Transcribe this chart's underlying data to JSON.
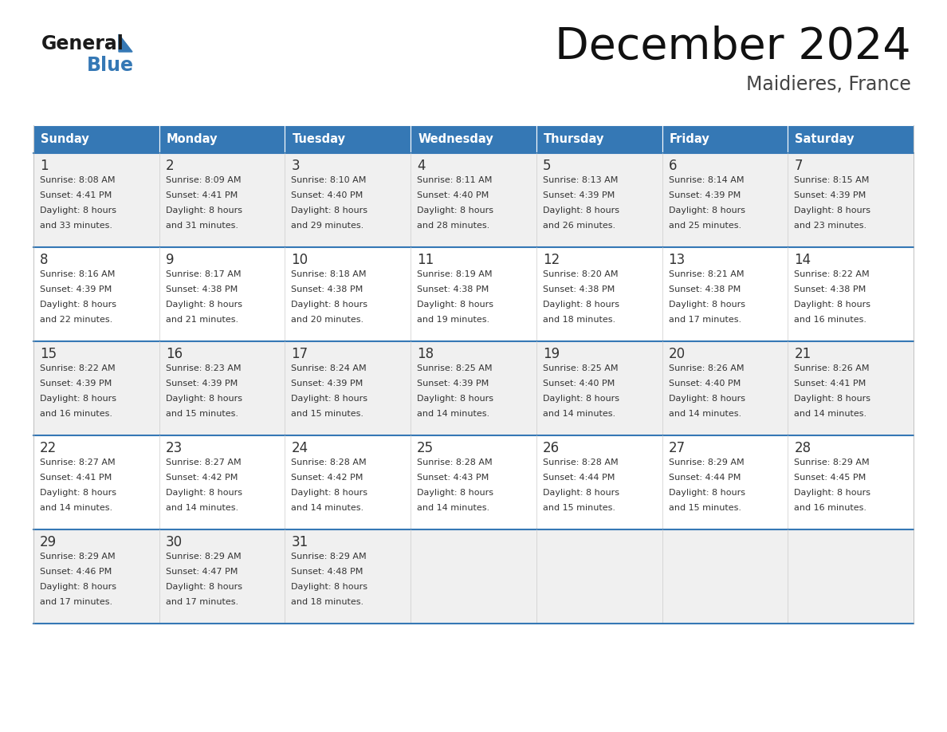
{
  "title": "December 2024",
  "subtitle": "Maidieres, France",
  "header_color": "#3578b5",
  "header_text_color": "#ffffff",
  "days_of_week": [
    "Sunday",
    "Monday",
    "Tuesday",
    "Wednesday",
    "Thursday",
    "Friday",
    "Saturday"
  ],
  "row_bg_colors": [
    "#f0f0f0",
    "#ffffff"
  ],
  "border_color": "#3578b5",
  "text_color": "#333333",
  "calendar_data": [
    [
      {
        "day": 1,
        "sunrise": "8:08 AM",
        "sunset": "4:41 PM",
        "daylight": "8 hours and 33 minutes"
      },
      {
        "day": 2,
        "sunrise": "8:09 AM",
        "sunset": "4:41 PM",
        "daylight": "8 hours and 31 minutes"
      },
      {
        "day": 3,
        "sunrise": "8:10 AM",
        "sunset": "4:40 PM",
        "daylight": "8 hours and 29 minutes"
      },
      {
        "day": 4,
        "sunrise": "8:11 AM",
        "sunset": "4:40 PM",
        "daylight": "8 hours and 28 minutes"
      },
      {
        "day": 5,
        "sunrise": "8:13 AM",
        "sunset": "4:39 PM",
        "daylight": "8 hours and 26 minutes"
      },
      {
        "day": 6,
        "sunrise": "8:14 AM",
        "sunset": "4:39 PM",
        "daylight": "8 hours and 25 minutes"
      },
      {
        "day": 7,
        "sunrise": "8:15 AM",
        "sunset": "4:39 PM",
        "daylight": "8 hours and 23 minutes"
      }
    ],
    [
      {
        "day": 8,
        "sunrise": "8:16 AM",
        "sunset": "4:39 PM",
        "daylight": "8 hours and 22 minutes"
      },
      {
        "day": 9,
        "sunrise": "8:17 AM",
        "sunset": "4:38 PM",
        "daylight": "8 hours and 21 minutes"
      },
      {
        "day": 10,
        "sunrise": "8:18 AM",
        "sunset": "4:38 PM",
        "daylight": "8 hours and 20 minutes"
      },
      {
        "day": 11,
        "sunrise": "8:19 AM",
        "sunset": "4:38 PM",
        "daylight": "8 hours and 19 minutes"
      },
      {
        "day": 12,
        "sunrise": "8:20 AM",
        "sunset": "4:38 PM",
        "daylight": "8 hours and 18 minutes"
      },
      {
        "day": 13,
        "sunrise": "8:21 AM",
        "sunset": "4:38 PM",
        "daylight": "8 hours and 17 minutes"
      },
      {
        "day": 14,
        "sunrise": "8:22 AM",
        "sunset": "4:38 PM",
        "daylight": "8 hours and 16 minutes"
      }
    ],
    [
      {
        "day": 15,
        "sunrise": "8:22 AM",
        "sunset": "4:39 PM",
        "daylight": "8 hours and 16 minutes"
      },
      {
        "day": 16,
        "sunrise": "8:23 AM",
        "sunset": "4:39 PM",
        "daylight": "8 hours and 15 minutes"
      },
      {
        "day": 17,
        "sunrise": "8:24 AM",
        "sunset": "4:39 PM",
        "daylight": "8 hours and 15 minutes"
      },
      {
        "day": 18,
        "sunrise": "8:25 AM",
        "sunset": "4:39 PM",
        "daylight": "8 hours and 14 minutes"
      },
      {
        "day": 19,
        "sunrise": "8:25 AM",
        "sunset": "4:40 PM",
        "daylight": "8 hours and 14 minutes"
      },
      {
        "day": 20,
        "sunrise": "8:26 AM",
        "sunset": "4:40 PM",
        "daylight": "8 hours and 14 minutes"
      },
      {
        "day": 21,
        "sunrise": "8:26 AM",
        "sunset": "4:41 PM",
        "daylight": "8 hours and 14 minutes"
      }
    ],
    [
      {
        "day": 22,
        "sunrise": "8:27 AM",
        "sunset": "4:41 PM",
        "daylight": "8 hours and 14 minutes"
      },
      {
        "day": 23,
        "sunrise": "8:27 AM",
        "sunset": "4:42 PM",
        "daylight": "8 hours and 14 minutes"
      },
      {
        "day": 24,
        "sunrise": "8:28 AM",
        "sunset": "4:42 PM",
        "daylight": "8 hours and 14 minutes"
      },
      {
        "day": 25,
        "sunrise": "8:28 AM",
        "sunset": "4:43 PM",
        "daylight": "8 hours and 14 minutes"
      },
      {
        "day": 26,
        "sunrise": "8:28 AM",
        "sunset": "4:44 PM",
        "daylight": "8 hours and 15 minutes"
      },
      {
        "day": 27,
        "sunrise": "8:29 AM",
        "sunset": "4:44 PM",
        "daylight": "8 hours and 15 minutes"
      },
      {
        "day": 28,
        "sunrise": "8:29 AM",
        "sunset": "4:45 PM",
        "daylight": "8 hours and 16 minutes"
      }
    ],
    [
      {
        "day": 29,
        "sunrise": "8:29 AM",
        "sunset": "4:46 PM",
        "daylight": "8 hours and 17 minutes"
      },
      {
        "day": 30,
        "sunrise": "8:29 AM",
        "sunset": "4:47 PM",
        "daylight": "8 hours and 17 minutes"
      },
      {
        "day": 31,
        "sunrise": "8:29 AM",
        "sunset": "4:48 PM",
        "daylight": "8 hours and 18 minutes"
      },
      null,
      null,
      null,
      null
    ]
  ],
  "logo_general_color": "#1a1a1a",
  "logo_blue_color": "#3578b5",
  "logo_triangle_color": "#3578b5"
}
